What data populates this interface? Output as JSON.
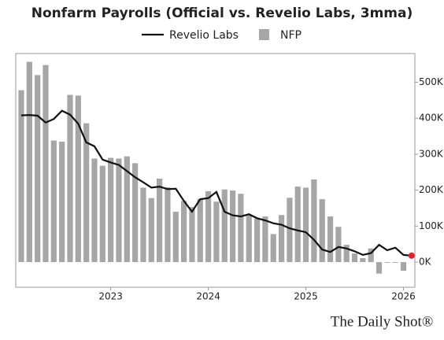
{
  "chart_data": {
    "type": "bar_line",
    "title": "Nonfarm Payrolls (Official vs. Revelio Labs, 3mma)",
    "source": "The Daily Shot®",
    "x": [
      "2022-02",
      "2022-03",
      "2022-04",
      "2022-05",
      "2022-06",
      "2022-07",
      "2022-08",
      "2022-09",
      "2022-10",
      "2022-11",
      "2022-12",
      "2023-01",
      "2023-02",
      "2023-03",
      "2023-04",
      "2023-05",
      "2023-06",
      "2023-07",
      "2023-08",
      "2023-09",
      "2023-10",
      "2023-11",
      "2023-12",
      "2024-01",
      "2024-02",
      "2024-03",
      "2024-04",
      "2024-05",
      "2024-06",
      "2024-07",
      "2024-08",
      "2024-09",
      "2024-10",
      "2024-11",
      "2024-12",
      "2025-01",
      "2025-02",
      "2025-03",
      "2025-04",
      "2025-05",
      "2025-06",
      "2025-07",
      "2025-08",
      "2025-09",
      "2025-10",
      "2025-11",
      "2025-12",
      "2026-01",
      "2026-02"
    ],
    "series": [
      {
        "name": "Revelio Labs",
        "type": "line",
        "color": "#111111",
        "values": [
          408,
          409,
          407,
          388,
          398,
          421,
          410,
          385,
          333,
          322,
          285,
          277,
          270,
          253,
          236,
          222,
          207,
          210,
          203,
          204,
          170,
          140,
          175,
          178,
          195,
          140,
          130,
          127,
          133,
          122,
          116,
          108,
          104,
          94,
          88,
          83,
          62,
          35,
          28,
          42,
          38,
          30,
          20,
          25,
          48,
          33,
          40,
          20,
          18
        ]
      },
      {
        "name": "NFP",
        "type": "bar",
        "color": "#a6a6a6",
        "values": [
          478,
          557,
          520,
          548,
          338,
          335,
          465,
          463,
          386,
          288,
          268,
          290,
          288,
          294,
          275,
          207,
          178,
          232,
          208,
          140,
          170,
          153,
          176,
          197,
          168,
          202,
          199,
          190,
          131,
          121,
          127,
          78,
          131,
          179,
          210,
          207,
          230,
          175,
          127,
          98,
          48,
          24,
          11,
          38,
          -32,
          -2,
          -2,
          -24,
          null
        ]
      }
    ],
    "end_marker_color": "#e8202a",
    "ylim": [
      -70,
      580
    ],
    "yticks": [
      {
        "value": 0,
        "label": "0K"
      },
      {
        "value": 100,
        "label": "100K"
      },
      {
        "value": 200,
        "label": "200K"
      },
      {
        "value": 300,
        "label": "300K"
      },
      {
        "value": 400,
        "label": "400K"
      },
      {
        "value": 500,
        "label": "500K"
      }
    ],
    "xticks": [
      2023,
      2024,
      2025,
      2026
    ]
  }
}
